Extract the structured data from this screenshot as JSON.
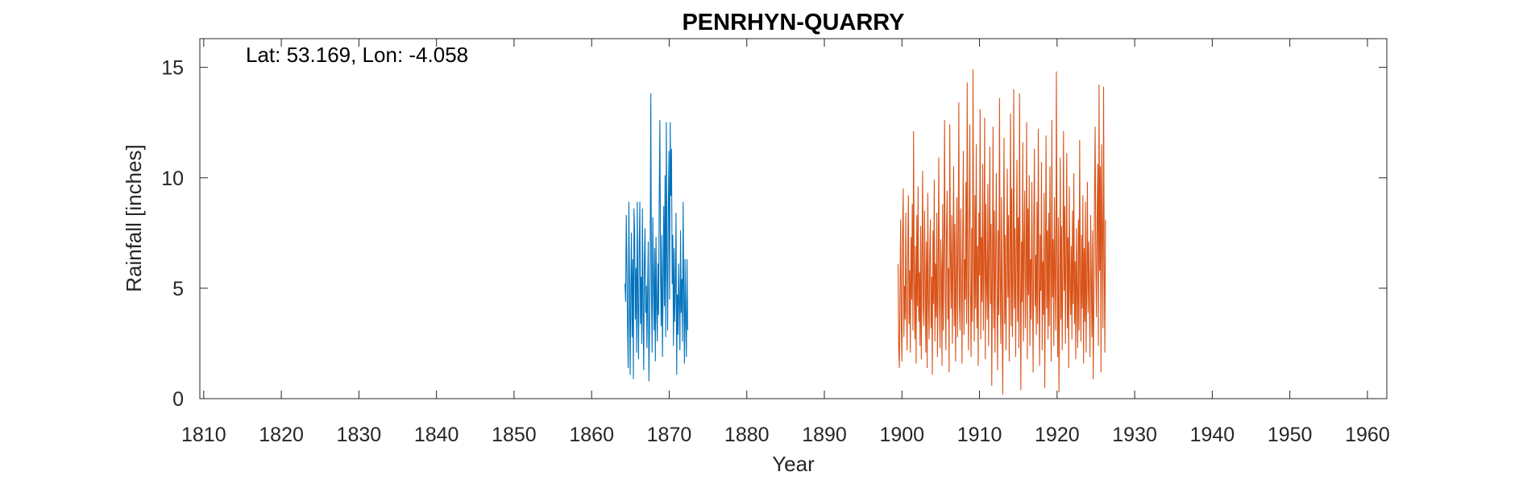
{
  "chart_data": {
    "type": "line",
    "title": "PENRHYN-QUARRY",
    "annotation": "Lat: 53.169, Lon: -4.058",
    "xlabel": "Year",
    "ylabel": "Rainfall [inches]",
    "xlim": [
      1809.5,
      1962.5
    ],
    "ylim": [
      0,
      16.3
    ],
    "xticks": [
      1810,
      1820,
      1830,
      1840,
      1850,
      1860,
      1870,
      1880,
      1890,
      1900,
      1910,
      1920,
      1930,
      1940,
      1950,
      1960
    ],
    "xtick_labels": [
      "1810",
      "1820",
      "1830",
      "1840",
      "1850",
      "1860",
      "1870",
      "1880",
      "1890",
      "1900",
      "1910",
      "1920",
      "1930",
      "1940",
      "1950",
      "1960"
    ],
    "yticks": [
      0,
      5,
      10,
      15
    ],
    "ytick_labels": [
      "0",
      "5",
      "10",
      "15"
    ],
    "grid": false,
    "box": true,
    "series": [
      {
        "color": "#0072BD",
        "x_start": 1864.3,
        "x_step": 0.0833,
        "values": [
          5.2,
          4.4,
          8.3,
          6.1,
          3.2,
          1.4,
          8.9,
          5.3,
          1.1,
          4.6,
          7.5,
          2.8,
          6.3,
          0.9,
          8.6,
          7.4,
          3.6,
          5.9,
          2.1,
          8.9,
          4.3,
          1.8,
          6.8,
          8.9,
          3.4,
          5.5,
          2.5,
          8.6,
          4.1,
          1.3,
          6.2,
          7.7,
          3.9,
          5.1,
          2.3,
          4.8,
          7.1,
          0.8,
          3.2,
          6.5,
          13.8,
          4.7,
          2.1,
          8.2,
          5.4,
          3.1,
          6.8,
          1.7,
          7.3,
          4.2,
          2.6,
          6.1,
          3.8,
          9.1,
          12.6,
          5.8,
          3.3,
          7.4,
          1.9,
          5.1,
          8.7,
          4.2,
          10.1,
          2.8,
          12.5,
          6.3,
          3.1,
          8.5,
          11.2,
          4.5,
          12.5,
          9.2,
          11.3,
          5.2,
          7.4,
          2.4,
          6.8,
          3.5,
          5.1,
          8.4,
          1.1,
          4.7,
          2.9,
          6.1,
          4.3,
          2.2,
          7.6,
          3.9,
          5.4,
          2.6,
          8.9,
          4.8,
          1.6,
          6.3,
          3.4,
          1.9,
          6.3,
          3.1
        ]
      },
      {
        "color": "#D95319",
        "x_start": 1899.5,
        "x_step": 0.0833,
        "values": [
          6.1,
          2.3,
          1.4,
          4.8,
          8.1,
          3.2,
          1.7,
          7.4,
          9.5,
          2.8,
          5.1,
          3.6,
          8.4,
          4.1,
          2.2,
          6.7,
          9.2,
          3.4,
          5.8,
          2.1,
          7.3,
          4.5,
          8.8,
          3.1,
          12.1,
          5.4,
          2.7,
          6.9,
          1.6,
          8.3,
          4.2,
          9.6,
          3.5,
          5.7,
          2.4,
          7.8,
          1.8,
          6.2,
          10.3,
          4.1,
          3.3,
          8.5,
          5.2,
          2.1,
          7.1,
          1.4,
          9.3,
          4.6,
          2.7,
          6.5,
          8.1,
          3.2,
          5.5,
          1.1,
          7.6,
          4.3,
          9.9,
          2.6,
          6.1,
          3.7,
          8.4,
          1.9,
          5.3,
          10.9,
          4.4,
          2.3,
          7.2,
          5.8,
          1.5,
          8.8,
          3.1,
          6.4,
          12.6,
          4.9,
          2.2,
          7.5,
          9.4,
          3.6,
          5.9,
          1.2,
          12.4,
          6.8,
          4.1,
          8.3,
          2.5,
          6.2,
          10.5,
          3.3,
          7.9,
          1.7,
          5.4,
          9.1,
          2.8,
          6.6,
          13.4,
          4.2,
          3.1,
          8.6,
          5.5,
          1.6,
          7.4,
          11.2,
          2.9,
          6.3,
          4.5,
          9.8,
          3.4,
          14.3,
          5.1,
          2.2,
          8.1,
          12.4,
          4.8,
          1.9,
          7.7,
          3.5,
          14.9,
          6.4,
          2.6,
          9.2,
          4.1,
          11.5,
          3.2,
          6.9,
          1.5,
          8.4,
          5.6,
          13.1,
          2.7,
          7.3,
          4.4,
          10.6,
          3.1,
          6.1,
          12.7,
          1.8,
          8.8,
          5.2,
          3.6,
          9.7,
          2.4,
          6.7,
          11.4,
          4.3,
          7.9,
          0.6,
          5.8,
          12.3,
          3.2,
          8.5,
          2.1,
          6.4,
          10.2,
          4.7,
          1.3,
          7.6,
          3.8,
          13.6,
          5.3,
          2.5,
          9.1,
          4.2,
          0.2,
          6.8,
          11.8,
          3.4,
          7.4,
          2.2,
          5.9,
          10.4,
          4.6,
          8.3,
          1.7,
          6.1,
          12.9,
          3.3,
          9.5,
          2.8,
          5.4,
          14.0,
          4.1,
          7.7,
          1.9,
          6.6,
          10.8,
          3.5,
          8.2,
          2.3,
          13.8,
          5.7,
          0.4,
          7.1,
          4.4,
          11.6,
          2.6,
          6.9,
          9.4,
          3.2,
          5.3,
          12.5,
          1.8,
          8.6,
          4.7,
          10.1,
          2.4,
          6.3,
          3.6,
          9.8,
          5.1,
          1.2,
          7.8,
          11.3,
          4.2,
          6.5,
          2.9,
          8.9,
          3.4,
          12.2,
          5.6,
          1.5,
          7.4,
          4.9,
          10.7,
          2.2,
          6.2,
          3.8,
          9.3,
          0.5,
          5.7,
          11.9,
          4.1,
          7.6,
          2.7,
          8.4,
          3.3,
          10.5,
          6.1,
          1.7,
          12.6,
          4.6,
          7.2,
          2.4,
          9.1,
          5.3,
          3.1,
          14.8,
          6.7,
          1.9,
          8.2,
          0.3,
          4.4,
          10.9,
          3.6,
          7.8,
          2.2,
          5.8,
          12.1,
          4.9,
          8.7,
          2.5,
          6.4,
          11.1,
          3.2,
          7.3,
          1.4,
          9.6,
          5.1,
          3.8,
          6.9,
          2.7,
          8.5,
          4.3,
          10.2,
          3.4,
          6.2,
          1.8,
          7.7,
          4.8,
          2.3,
          8.1,
          3.1,
          11.7,
          5.5,
          2.6,
          7.4,
          4.1,
          9.2,
          1.6,
          6.8,
          3.5,
          8.9,
          2.1,
          5.2,
          9.8,
          3.9,
          7.1,
          4.6,
          1.9,
          8.3,
          5.4,
          2.8,
          7.6,
          0.9,
          4.2,
          9.4,
          12.3,
          6.1,
          3.7,
          8.2,
          10.6,
          2.4,
          14.2,
          5.8,
          10.5,
          1.2,
          11.5,
          7.3,
          3.2,
          14.1,
          6.2,
          2.1,
          8.1
        ]
      }
    ]
  }
}
